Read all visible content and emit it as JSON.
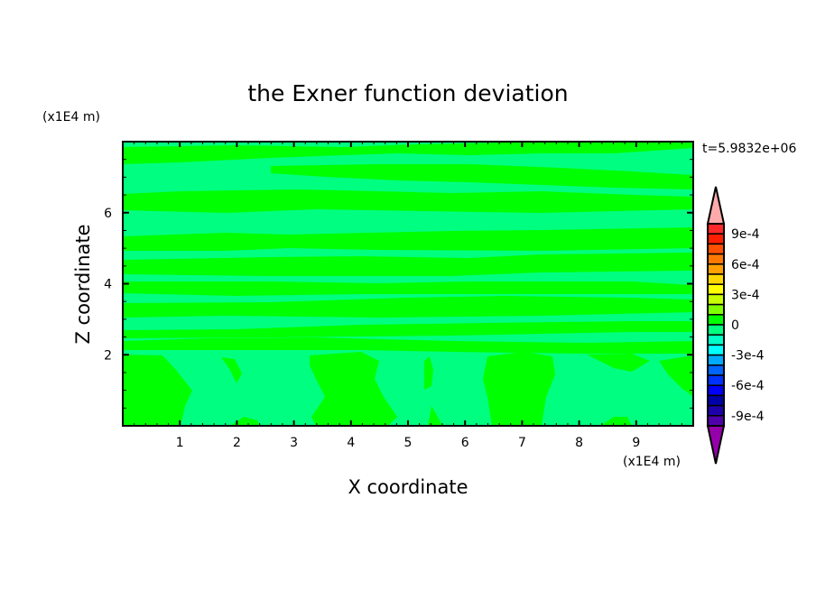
{
  "chart_data": {
    "type": "heatmap",
    "subtype": "filled-contour",
    "title": "the Exner function deviation",
    "xlabel": "X coordinate",
    "ylabel": "Z coordinate",
    "x_unit": "(x1E4 m)",
    "y_unit": "(x1E4 m)",
    "xlim": [
      0,
      10
    ],
    "ylim": [
      0,
      8
    ],
    "xticks": [
      "1",
      "2",
      "3",
      "4",
      "5",
      "6",
      "7",
      "8",
      "9"
    ],
    "yticks": [
      "2",
      "4",
      "6"
    ],
    "time_label": "t=5.9832e+06",
    "field_levels_present": [
      -0.0001,
      0.0001
    ],
    "field_colors": {
      "negative_small": "#00ff80",
      "positive_small": "#00ff00"
    },
    "colorbar": {
      "levels_min": -0.001,
      "levels_max": 0.001,
      "step": 0.0001,
      "labels": [
        "9e-4",
        "6e-4",
        "3e-4",
        "0",
        "-3e-4",
        "-6e-4",
        "-9e-4"
      ],
      "label_values": [
        0.0009,
        0.0006,
        0.0003,
        0,
        -0.0003,
        -0.0006,
        -0.0009
      ],
      "colors_top_to_bottom": [
        "#ff2828",
        "#ff1e00",
        "#ff5000",
        "#ff7800",
        "#ffa000",
        "#ffd700",
        "#ffff00",
        "#c8ff00",
        "#80ff00",
        "#00ff00",
        "#00ff80",
        "#00ffc8",
        "#00ffff",
        "#00aaff",
        "#0064ff",
        "#0032ff",
        "#0000ff",
        "#0000aa",
        "#1e00aa",
        "#5000aa"
      ],
      "over_color": "#ffaaaa",
      "under_color": "#9600aa"
    }
  }
}
